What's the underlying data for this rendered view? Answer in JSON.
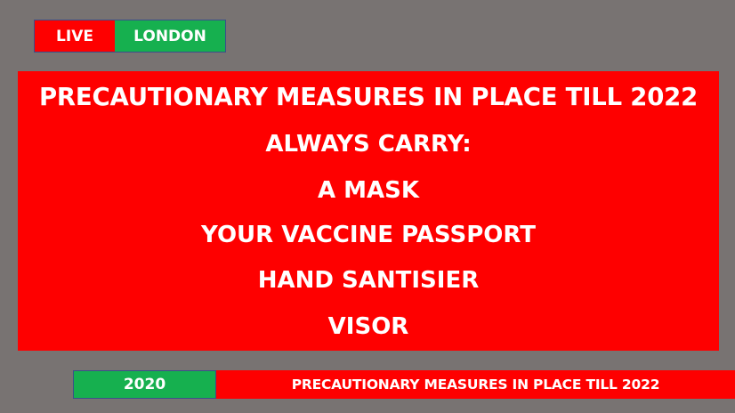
{
  "top_tag": {
    "live_label": "LIVE",
    "location": "LONDON"
  },
  "main_panel": {
    "headline": "PRECAUTIONARY MEASURES IN PLACE TILL 2022",
    "lines": [
      "ALWAYS CARRY:",
      "A MASK",
      "YOUR VACCINE PASSPORT",
      "HAND SANTISIER",
      "VISOR"
    ]
  },
  "bottom_bar": {
    "year": "2020",
    "ticker": "PRECAUTIONARY MEASURES IN PLACE TILL 2022"
  },
  "colors": {
    "background": "#787372",
    "red": "#fe0000",
    "green": "#16b04f",
    "text": "#ffffff"
  }
}
